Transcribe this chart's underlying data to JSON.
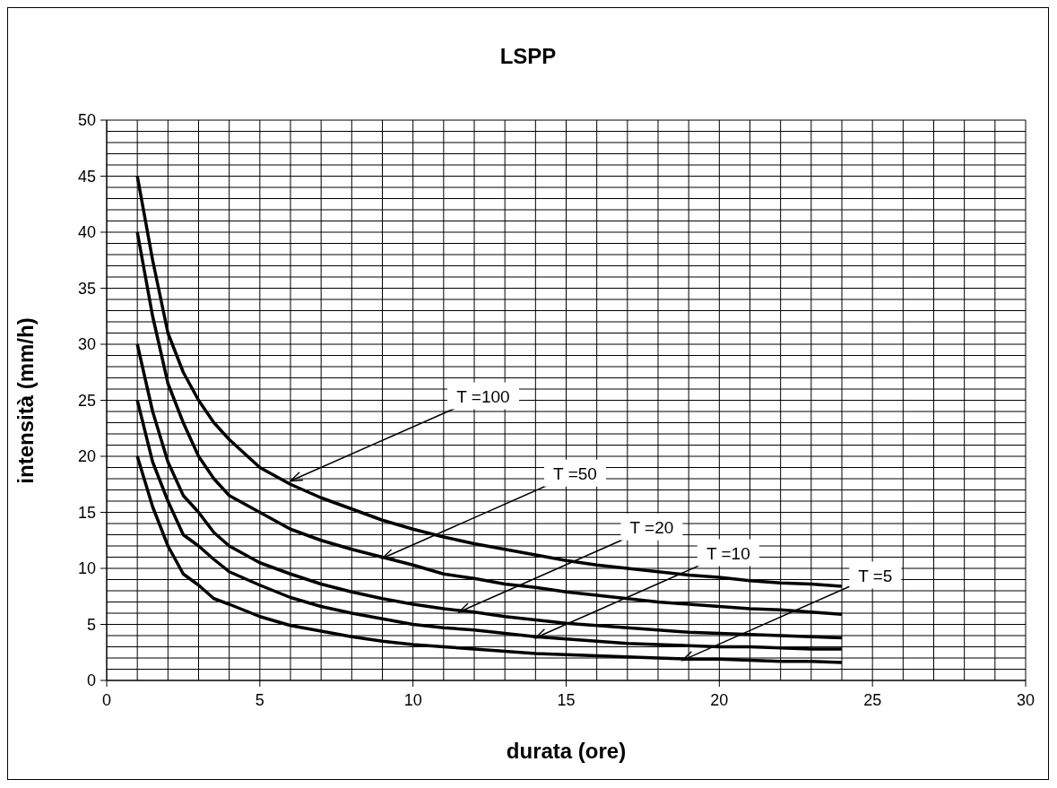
{
  "chart_data": {
    "type": "line",
    "title": "LSPP",
    "xlabel": "durata (ore)",
    "ylabel": "intensità (mm/h)",
    "x": [
      1,
      1.5,
      2,
      2.5,
      3,
      3.5,
      4,
      5,
      6,
      7,
      8,
      9,
      10,
      11,
      12,
      13,
      14,
      15,
      16,
      17,
      18,
      19,
      20,
      21,
      22,
      23,
      24
    ],
    "series": [
      {
        "color": "#000000",
        "values": [
          45,
          37.5,
          31,
          27.5,
          25,
          23,
          21.5,
          19,
          17.5,
          16.3,
          15.3,
          14.3,
          13.5,
          12.8,
          12.2,
          11.7,
          11.2,
          10.7,
          10.3,
          10,
          9.7,
          9.4,
          9.2,
          8.9,
          8.7,
          8.6,
          8.4
        ]
      },
      {
        "color": "#000000",
        "values": [
          40,
          32.5,
          26.5,
          23,
          20,
          18,
          16.5,
          15,
          13.5,
          12.5,
          11.7,
          11,
          10.3,
          9.5,
          9.1,
          8.6,
          8.3,
          7.9,
          7.6,
          7.3,
          7,
          6.8,
          6.6,
          6.4,
          6.3,
          6.1,
          5.9
        ]
      },
      {
        "color": "#000000",
        "values": [
          30,
          24,
          19.5,
          16.5,
          15,
          13.2,
          12,
          10.5,
          9.5,
          8.6,
          7.9,
          7.3,
          6.8,
          6.4,
          6.1,
          5.7,
          5.4,
          5.1,
          4.9,
          4.7,
          4.5,
          4.3,
          4.2,
          4.1,
          4,
          3.9,
          3.8
        ]
      },
      {
        "color": "#000000",
        "values": [
          25,
          19.5,
          16,
          13,
          12,
          10.8,
          9.7,
          8.5,
          7.4,
          6.6,
          6,
          5.5,
          5,
          4.7,
          4.5,
          4.2,
          3.9,
          3.7,
          3.5,
          3.3,
          3.2,
          3.1,
          3,
          3,
          2.9,
          2.8,
          2.8
        ]
      },
      {
        "color": "#000000",
        "values": [
          20,
          15.5,
          12,
          9.5,
          8.5,
          7.3,
          6.8,
          5.7,
          4.9,
          4.4,
          3.9,
          3.5,
          3.2,
          3,
          2.8,
          2.6,
          2.4,
          2.3,
          2.2,
          2.1,
          2,
          1.9,
          1.9,
          1.8,
          1.7,
          1.7,
          1.6
        ]
      }
    ],
    "annotations": [
      {
        "text": "T =100",
        "x": 6,
        "y": 17.8
      },
      {
        "text": "T =50",
        "x": 9,
        "y": 10.9
      },
      {
        "text": "T =20",
        "x": 11.5,
        "y": 6.1
      },
      {
        "text": "T =10",
        "x": 14,
        "y": 3.8
      },
      {
        "text": "T =5",
        "x": 18.8,
        "y": 1.8
      }
    ],
    "xlim": [
      0,
      30
    ],
    "xticks": [
      0,
      {
        "value": 1,
        "label": null
      },
      {
        "value": 2,
        "label": null
      },
      {
        "value": 3,
        "label": null
      },
      {
        "value": 4,
        "label": null
      },
      5,
      {
        "value": 6,
        "label": null
      },
      {
        "value": 7,
        "label": null
      },
      {
        "value": 8,
        "label": null
      },
      {
        "value": 9,
        "label": null
      },
      10,
      {
        "value": 11,
        "label": null
      },
      {
        "value": 12,
        "label": null
      },
      {
        "value": 13,
        "label": null
      },
      {
        "value": 14,
        "label": null
      },
      15,
      {
        "value": 16,
        "label": null
      },
      {
        "value": 17,
        "label": null
      },
      {
        "value": 18,
        "label": null
      },
      {
        "value": 19,
        "label": null
      },
      20,
      {
        "value": 21,
        "label": null
      },
      {
        "value": 22,
        "label": null
      },
      {
        "value": 23,
        "label": null
      },
      {
        "value": 24,
        "label": null
      },
      25,
      {
        "value": 26,
        "label": null
      },
      {
        "value": 27,
        "label": null
      },
      {
        "value": 28,
        "label": null
      },
      {
        "value": 29,
        "label": null
      },
      30
    ],
    "ylim": [
      0,
      50
    ],
    "yticks": [
      0,
      {
        "value": 1,
        "label": null
      },
      {
        "value": 2,
        "label": null
      },
      {
        "value": 3,
        "label": null
      },
      {
        "value": 4,
        "label": null
      },
      5,
      {
        "value": 6,
        "label": null
      },
      {
        "value": 7,
        "label": null
      },
      {
        "value": 8,
        "label": null
      },
      {
        "value": 9,
        "label": null
      },
      10,
      {
        "value": 11,
        "label": null
      },
      {
        "value": 12,
        "label": null
      },
      {
        "value": 13,
        "label": null
      },
      {
        "value": 14,
        "label": null
      },
      15,
      {
        "value": 16,
        "label": null
      },
      {
        "value": 17,
        "label": null
      },
      {
        "value": 18,
        "label": null
      },
      {
        "value": 19,
        "label": null
      },
      20,
      {
        "value": 21,
        "label": null
      },
      {
        "value": 22,
        "label": null
      },
      {
        "value": 23,
        "label": null
      },
      {
        "value": 24,
        "label": null
      },
      25,
      {
        "value": 26,
        "label": null
      },
      {
        "value": 27,
        "label": null
      },
      {
        "value": 28,
        "label": null
      },
      {
        "value": 29,
        "label": null
      },
      30,
      {
        "value": 31,
        "label": null
      },
      {
        "value": 32,
        "label": null
      },
      {
        "value": 33,
        "label": null
      },
      {
        "value": 34,
        "label": null
      },
      35,
      {
        "value": 36,
        "label": null
      },
      {
        "value": 37,
        "label": null
      },
      {
        "value": 38,
        "label": null
      },
      {
        "value": 39,
        "label": null
      },
      40,
      {
        "value": 41,
        "label": null
      },
      {
        "value": 42,
        "label": null
      },
      {
        "value": 43,
        "label": null
      },
      {
        "value": 44,
        "label": null
      },
      45,
      {
        "value": 46,
        "label": null
      },
      {
        "value": 47,
        "label": null
      },
      {
        "value": 48,
        "label": null
      },
      {
        "value": 49,
        "label": null
      },
      50
    ],
    "grid": true,
    "marker": "none",
    "line_style": "solid"
  }
}
